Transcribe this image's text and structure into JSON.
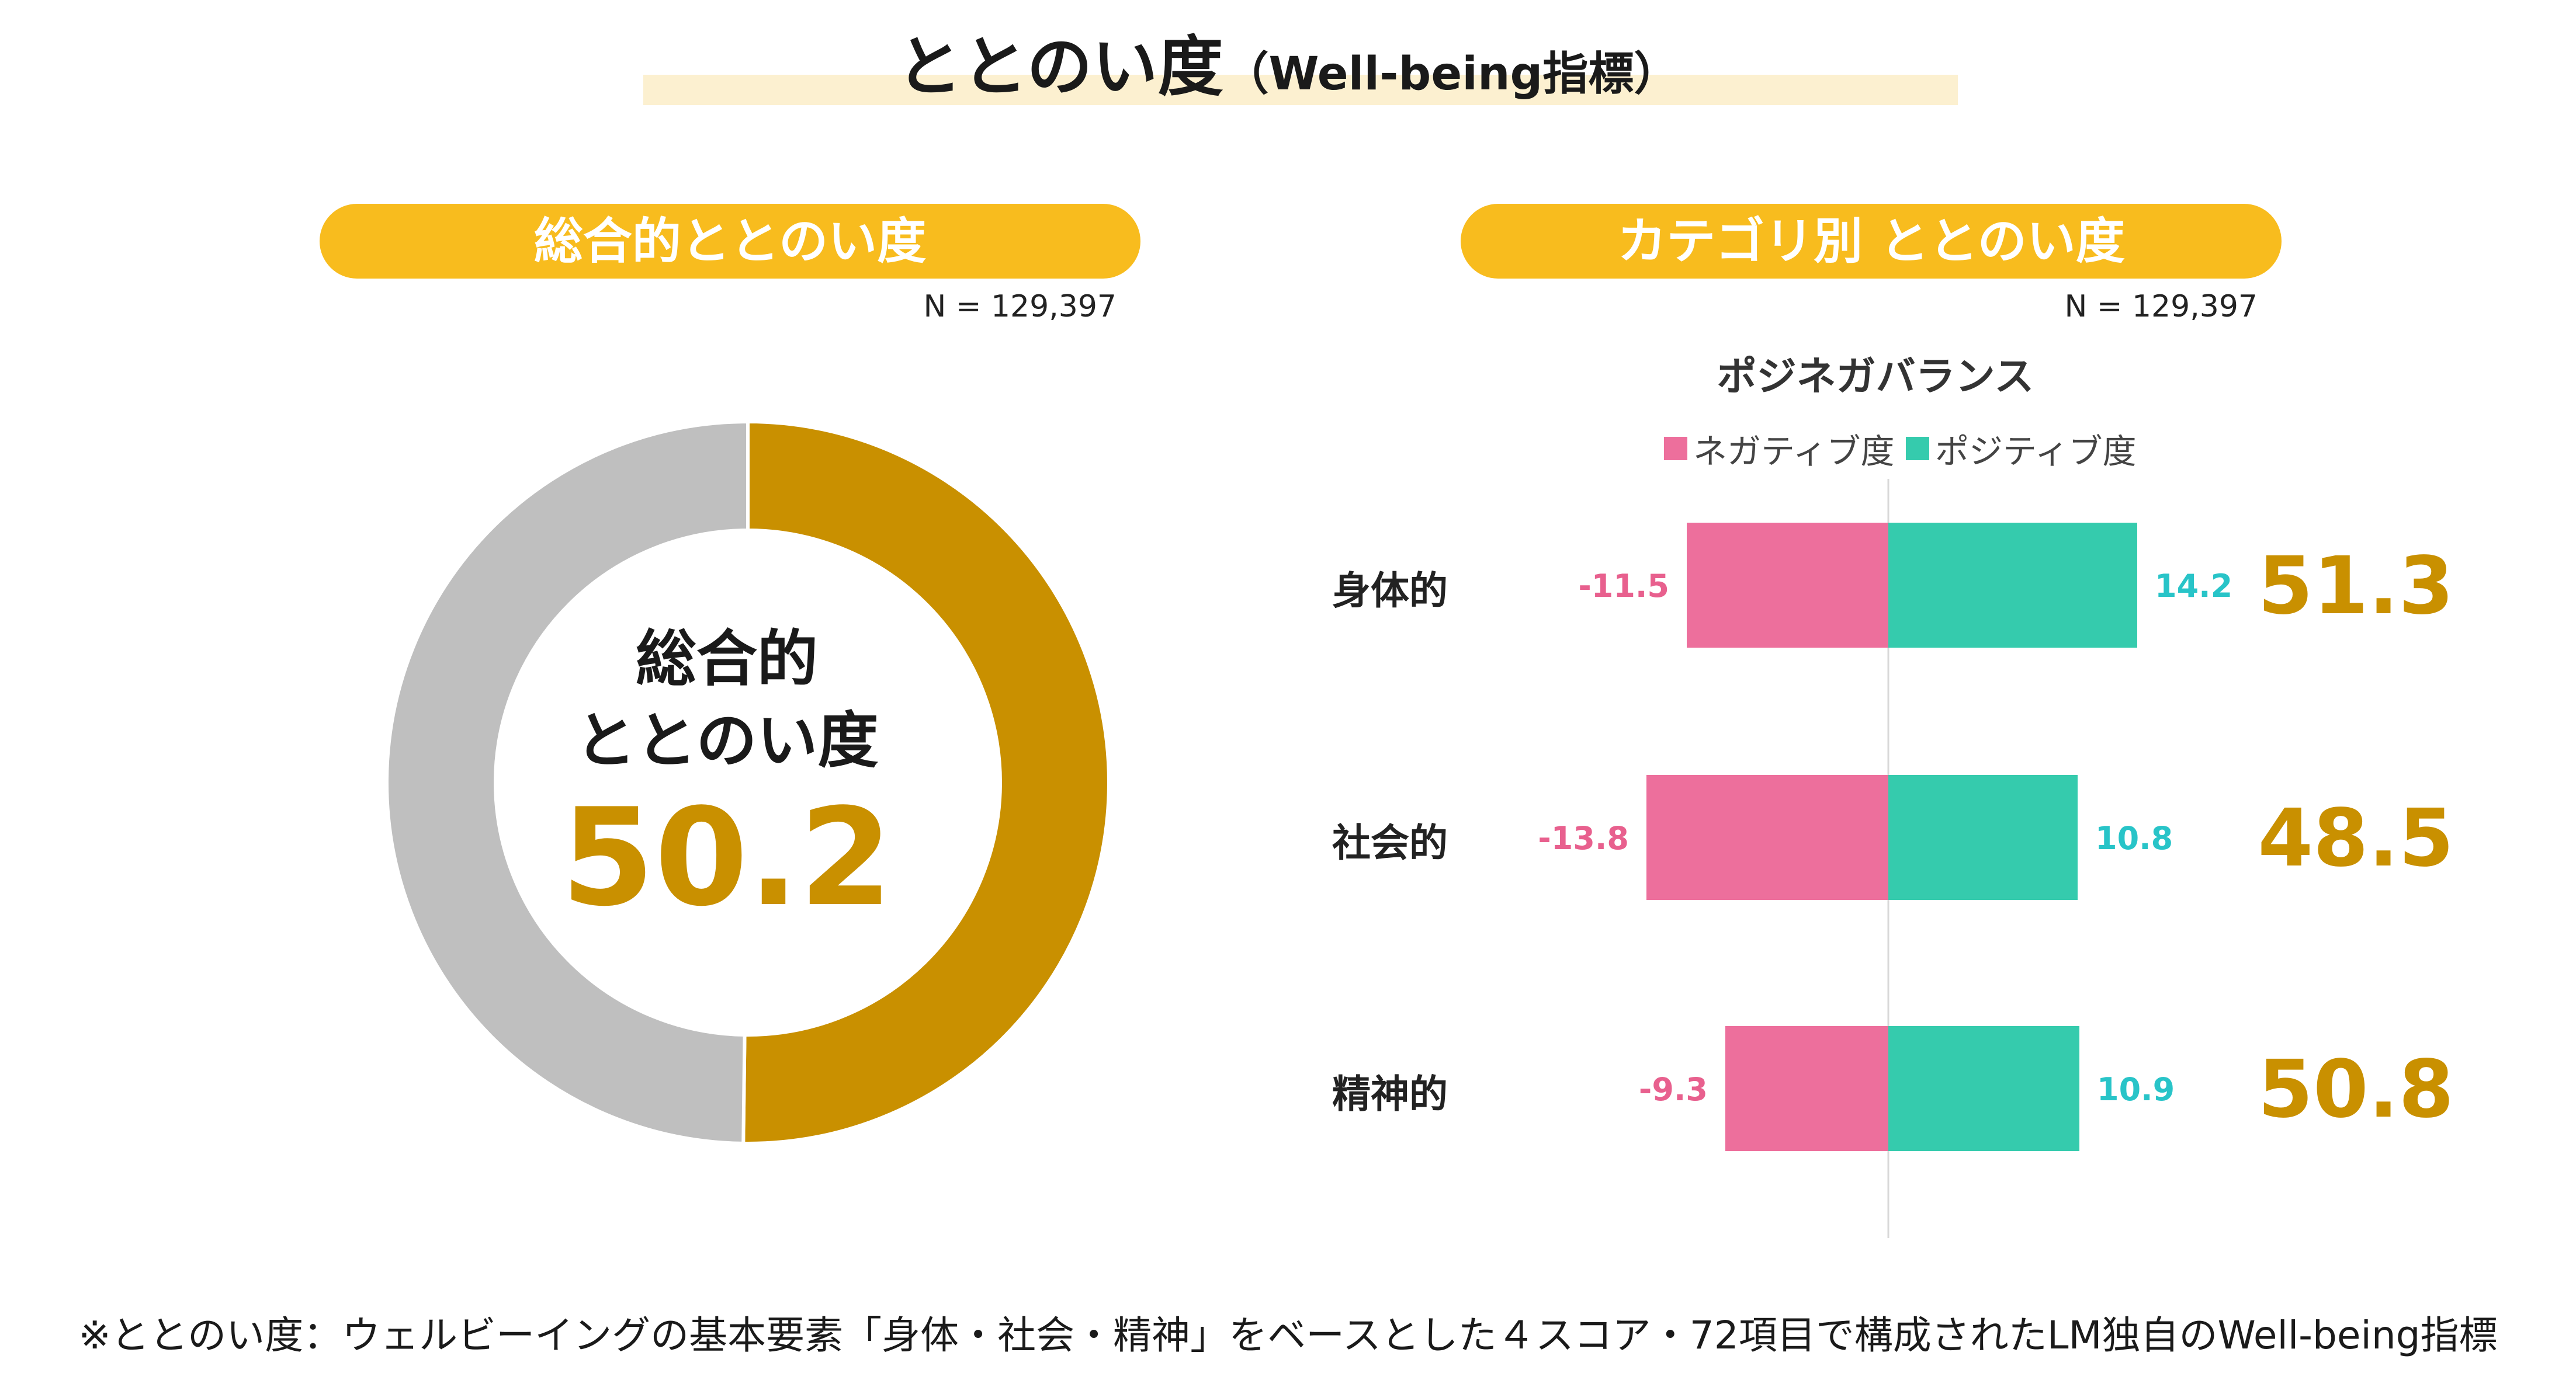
{
  "header": {
    "title": "ととのい度",
    "title_sub": "（Well-being指標）"
  },
  "left_panel": {
    "pill": "総合的ととのい度",
    "n_label": "N = 129,397",
    "center_line1": "総合的",
    "center_line2": "ととのい度",
    "center_value": "50.2"
  },
  "right_panel": {
    "pill": "カテゴリ別 ととのい度",
    "n_label": "N = 129,397",
    "balance_title": "ポジネガバランス",
    "legend": {
      "negative": "ネガティブ度",
      "positive": "ポジティブ度"
    }
  },
  "footnote": "※ととのい度：ウェルビーイングの基本要素「身体・社会・精神」をベースとした４スコア・72項目で構成されたLM独自のWell-being指標",
  "colors": {
    "gold": "#c99000",
    "gray": "#bfbfbf",
    "pill": "#f8bc1e",
    "negative": "#ed6f9c",
    "positive": "#35cbad",
    "negative_text": "#e8608e",
    "positive_text": "#28c4c8"
  },
  "chart_data": [
    {
      "type": "pie",
      "variant": "donut",
      "values": [
        50.2,
        49.8
      ],
      "center_value": "50.2"
    },
    {
      "type": "bar",
      "orientation": "horizontal",
      "stacked_diverging": true,
      "categories": [
        "身体的",
        "社会的",
        "精神的"
      ],
      "series": [
        {
          "name": "ネガティブ度",
          "values": [
            -11.5,
            -13.8,
            -9.3
          ],
          "labels": [
            "-11.5",
            "-13.8",
            "-9.3"
          ]
        },
        {
          "name": "ポジティブ度",
          "values": [
            14.2,
            10.8,
            10.9
          ],
          "labels": [
            "14.2",
            "10.8",
            "10.9"
          ]
        }
      ],
      "totals": [
        "51.3",
        "48.5",
        "50.8"
      ],
      "xlim": [
        -16,
        16
      ],
      "grid": false,
      "legend_position": "top"
    }
  ]
}
